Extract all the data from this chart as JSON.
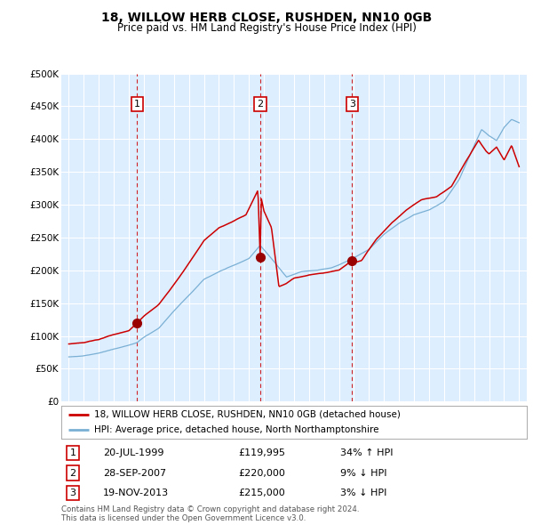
{
  "title": "18, WILLOW HERB CLOSE, RUSHDEN, NN10 0GB",
  "subtitle": "Price paid vs. HM Land Registry's House Price Index (HPI)",
  "legend_line1": "18, WILLOW HERB CLOSE, RUSHDEN, NN10 0GB (detached house)",
  "legend_line2": "HPI: Average price, detached house, North Northamptonshire",
  "footer1": "Contains HM Land Registry data © Crown copyright and database right 2024.",
  "footer2": "This data is licensed under the Open Government Licence v3.0.",
  "sale_points": [
    {
      "num": 1,
      "date": "20-JUL-1999",
      "price": 119995,
      "pct": "34%",
      "dir": "↑",
      "year": 1999.55
    },
    {
      "num": 2,
      "date": "28-SEP-2007",
      "price": 220000,
      "pct": "9%",
      "dir": "↓",
      "year": 2007.75
    },
    {
      "num": 3,
      "date": "19-NOV-2013",
      "price": 215000,
      "pct": "3%",
      "dir": "↓",
      "year": 2013.88
    }
  ],
  "hpi_color": "#7ab0d4",
  "price_color": "#cc0000",
  "bg_color": "#ddeeff",
  "grid_color": "#ffffff",
  "dashed_line_color": "#cc0000",
  "ylim": [
    0,
    500000
  ],
  "yticks": [
    0,
    50000,
    100000,
    150000,
    200000,
    250000,
    300000,
    350000,
    400000,
    450000,
    500000
  ],
  "xlim_start": 1994.5,
  "xlim_end": 2025.5,
  "hpi_anchors": [
    [
      1995.0,
      68000
    ],
    [
      1996.0,
      70000
    ],
    [
      1997.0,
      74000
    ],
    [
      1998.0,
      80000
    ],
    [
      1999.0,
      86000
    ],
    [
      1999.55,
      90000
    ],
    [
      2000.0,
      98000
    ],
    [
      2001.0,
      112000
    ],
    [
      2002.0,
      138000
    ],
    [
      2003.0,
      162000
    ],
    [
      2004.0,
      186000
    ],
    [
      2005.0,
      198000
    ],
    [
      2006.0,
      208000
    ],
    [
      2007.0,
      218000
    ],
    [
      2007.75,
      238000
    ],
    [
      2008.5,
      218000
    ],
    [
      2009.5,
      190000
    ],
    [
      2010.5,
      198000
    ],
    [
      2011.5,
      200000
    ],
    [
      2012.5,
      204000
    ],
    [
      2013.0,
      208000
    ],
    [
      2013.88,
      218000
    ],
    [
      2015.0,
      232000
    ],
    [
      2016.0,
      255000
    ],
    [
      2017.0,
      272000
    ],
    [
      2018.0,
      285000
    ],
    [
      2019.0,
      292000
    ],
    [
      2020.0,
      305000
    ],
    [
      2021.0,
      338000
    ],
    [
      2022.0,
      390000
    ],
    [
      2022.5,
      415000
    ],
    [
      2023.0,
      405000
    ],
    [
      2023.5,
      398000
    ],
    [
      2024.0,
      418000
    ],
    [
      2024.5,
      430000
    ],
    [
      2025.0,
      425000
    ]
  ],
  "price_anchors": [
    [
      1995.0,
      88000
    ],
    [
      1996.0,
      90000
    ],
    [
      1997.0,
      95000
    ],
    [
      1998.0,
      102000
    ],
    [
      1999.0,
      108000
    ],
    [
      1999.55,
      120000
    ],
    [
      2000.0,
      130000
    ],
    [
      2001.0,
      148000
    ],
    [
      2002.0,
      178000
    ],
    [
      2003.0,
      210000
    ],
    [
      2004.0,
      245000
    ],
    [
      2005.0,
      265000
    ],
    [
      2006.0,
      275000
    ],
    [
      2006.8,
      285000
    ],
    [
      2007.3,
      308000
    ],
    [
      2007.6,
      322000
    ],
    [
      2007.75,
      220000
    ],
    [
      2007.82,
      310000
    ],
    [
      2008.0,
      290000
    ],
    [
      2008.5,
      265000
    ],
    [
      2009.0,
      175000
    ],
    [
      2009.5,
      180000
    ],
    [
      2010.0,
      188000
    ],
    [
      2011.0,
      193000
    ],
    [
      2012.0,
      196000
    ],
    [
      2013.0,
      200000
    ],
    [
      2013.88,
      215000
    ],
    [
      2014.0,
      212000
    ],
    [
      2014.5,
      215000
    ],
    [
      2015.5,
      248000
    ],
    [
      2016.5,
      272000
    ],
    [
      2017.5,
      292000
    ],
    [
      2018.5,
      308000
    ],
    [
      2019.5,
      312000
    ],
    [
      2020.5,
      328000
    ],
    [
      2021.5,
      368000
    ],
    [
      2022.3,
      398000
    ],
    [
      2022.8,
      382000
    ],
    [
      2023.0,
      378000
    ],
    [
      2023.5,
      388000
    ],
    [
      2024.0,
      368000
    ],
    [
      2024.5,
      390000
    ],
    [
      2025.0,
      358000
    ]
  ]
}
